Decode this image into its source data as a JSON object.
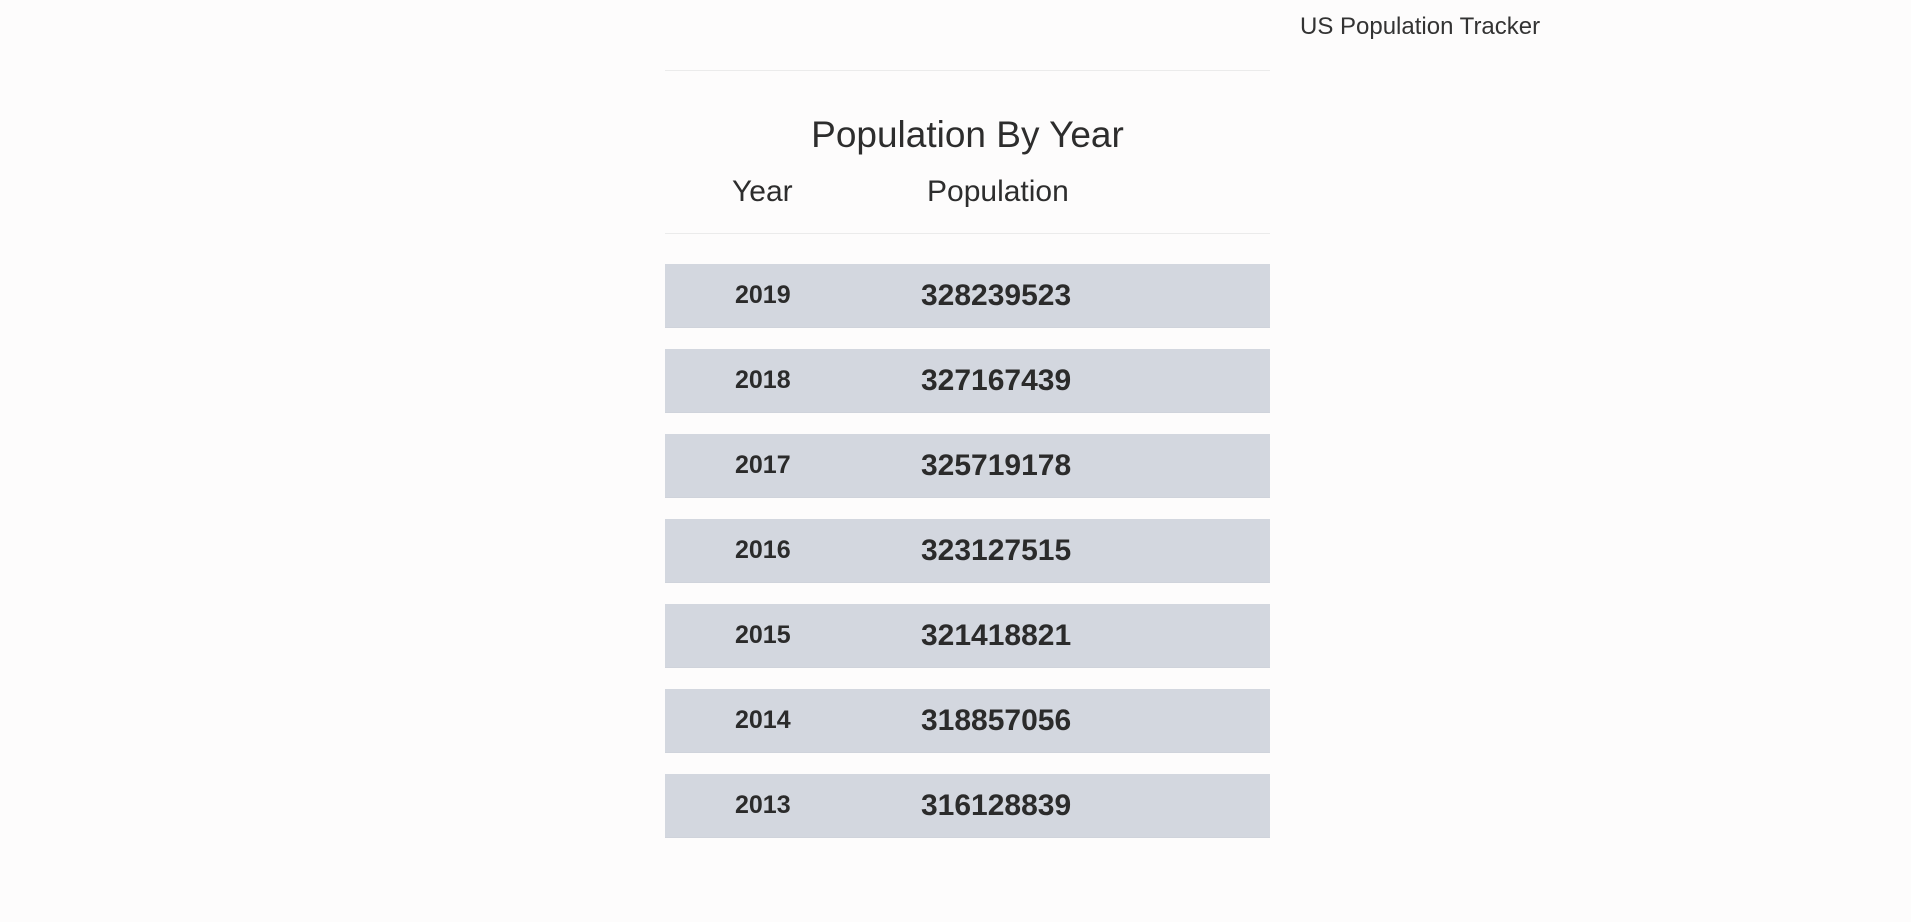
{
  "header": {
    "app_title": "US Population Tracker"
  },
  "panel": {
    "title": "Population By Year",
    "columns": {
      "year": "Year",
      "population": "Population"
    },
    "rows": [
      {
        "year": "2019",
        "population": "328239523"
      },
      {
        "year": "2018",
        "population": "327167439"
      },
      {
        "year": "2017",
        "population": "325719178"
      },
      {
        "year": "2016",
        "population": "323127515"
      },
      {
        "year": "2015",
        "population": "321418821"
      },
      {
        "year": "2014",
        "population": "318857056"
      },
      {
        "year": "2013",
        "population": "316128839"
      }
    ]
  },
  "colors": {
    "row_background": "#d3d7df",
    "text": "#2d2d2d",
    "page_background": "#fdfcfc"
  }
}
